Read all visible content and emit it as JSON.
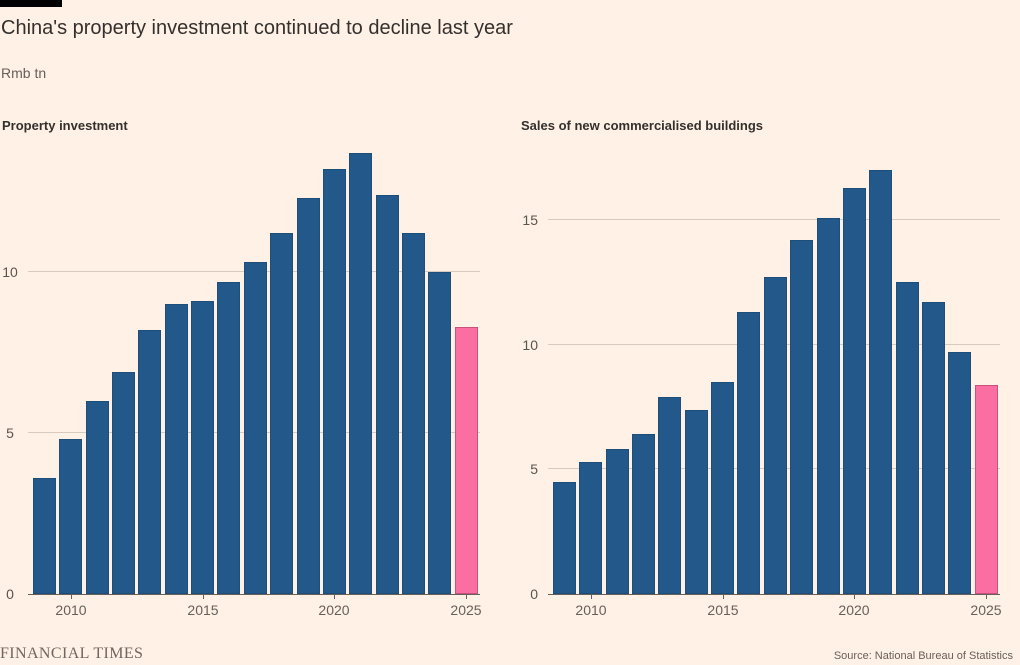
{
  "header": {
    "title": "China's property investment continued to decline last year",
    "units": "Rmb tn"
  },
  "footer": {
    "brand": "FINANCIAL TIMES",
    "source": "Source: National Bureau of Statistics"
  },
  "colors": {
    "background": "#FFF1E5",
    "bar": "#23588A",
    "bar_border": "#1C4E79",
    "highlight": "#FA6EA2",
    "highlight_border": "#C9527D",
    "grid": "#D7CABF",
    "axis": "#66605C",
    "text": "#33302E",
    "muted": "#66605C"
  },
  "chart_data": [
    {
      "type": "bar",
      "title": "Property investment",
      "categories": [
        2009,
        2010,
        2011,
        2012,
        2013,
        2014,
        2015,
        2016,
        2017,
        2018,
        2019,
        2020,
        2021,
        2022,
        2023,
        2024,
        2025
      ],
      "values": [
        3.6,
        4.8,
        6.0,
        6.9,
        8.2,
        9.0,
        9.1,
        9.7,
        10.3,
        11.2,
        12.3,
        13.2,
        13.7,
        12.4,
        11.2,
        10.0,
        8.3
      ],
      "highlight_year": 2025,
      "ylabel": "Rmb tn",
      "ylim": [
        0,
        14.3
      ],
      "yticks": [
        0,
        5,
        10
      ],
      "xticks": [
        2010,
        2015,
        2020,
        2025
      ],
      "grid": true,
      "legend": "none"
    },
    {
      "type": "bar",
      "title": "Sales of new commercialised buildings",
      "categories": [
        2009,
        2010,
        2011,
        2012,
        2013,
        2014,
        2015,
        2016,
        2017,
        2018,
        2019,
        2020,
        2021,
        2022,
        2023,
        2024,
        2025
      ],
      "values": [
        4.5,
        5.3,
        5.8,
        6.4,
        7.9,
        7.4,
        8.5,
        11.3,
        12.7,
        14.2,
        15.1,
        16.3,
        17.0,
        12.5,
        11.7,
        9.7,
        8.4
      ],
      "highlight_year": 2025,
      "ylabel": "Rmb tn",
      "ylim": [
        0,
        18.5
      ],
      "yticks": [
        0,
        5,
        10,
        15
      ],
      "xticks": [
        2010,
        2015,
        2020,
        2025
      ],
      "grid": true,
      "legend": "none"
    }
  ]
}
